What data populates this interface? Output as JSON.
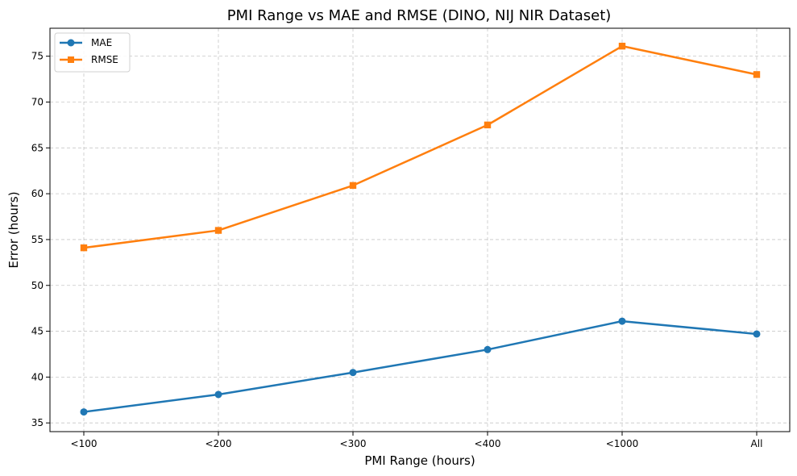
{
  "chart_data": {
    "type": "line",
    "title": "PMI Range vs MAE and RMSE (DINO, NIJ NIR Dataset)",
    "xlabel": "PMI Range (hours)",
    "ylabel": "Error (hours)",
    "categories": [
      "<100",
      "<200",
      "<300",
      "<400",
      "<1000",
      "All"
    ],
    "ylim": [
      34.05,
      78.05
    ],
    "yticks": [
      35,
      40,
      45,
      50,
      55,
      60,
      65,
      70,
      75
    ],
    "grid": true,
    "legend_position": "top-left",
    "series": [
      {
        "name": "MAE",
        "values": [
          36.2,
          38.1,
          40.5,
          43.0,
          46.1,
          44.7
        ],
        "color": "#1f77b4",
        "marker": "circle"
      },
      {
        "name": "RMSE",
        "values": [
          54.1,
          56.0,
          60.9,
          67.5,
          76.1,
          73.0
        ],
        "color": "#ff7f0e",
        "marker": "square"
      }
    ]
  }
}
